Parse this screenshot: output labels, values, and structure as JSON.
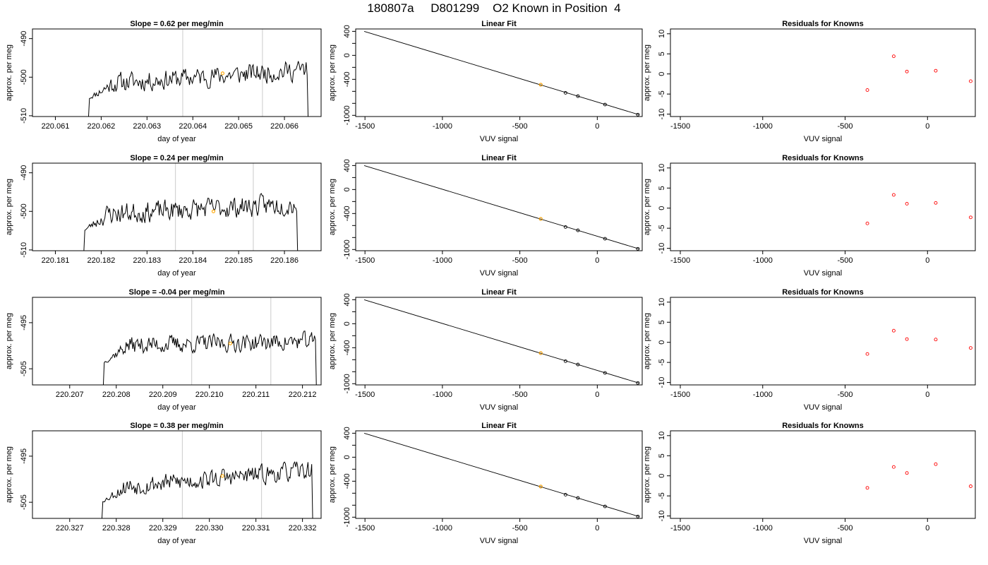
{
  "page_title": "180807a     D801299    O2 Known in Position  4",
  "colors": {
    "trace": "#000000",
    "highlight": "#ffa500",
    "residual": "#ff0000",
    "vline": "#d3d3d3",
    "axis": "#000000"
  },
  "chart_data": [
    {
      "type": "line",
      "row": 0,
      "col": 0,
      "title": "Slope =  0.62  per meg/min",
      "xlabel": "day of year",
      "ylabel": "approx. per meg",
      "xlim": [
        220.0605,
        220.0668
      ],
      "ylim": [
        -510.2,
        -487.5
      ],
      "xticks": [
        {
          "v": 220.061,
          "label": "220.061"
        },
        {
          "v": 220.062,
          "label": "220.062"
        },
        {
          "v": 220.063,
          "label": "220.063"
        },
        {
          "v": 220.064,
          "label": "220.064"
        },
        {
          "v": 220.065,
          "label": "220.065"
        },
        {
          "v": 220.066,
          "label": "220.066"
        }
      ],
      "yticks": [
        {
          "v": -510,
          "label": "-510"
        },
        {
          "v": -500,
          "label": "-500"
        },
        {
          "v": -490,
          "label": "-490"
        }
      ],
      "x_start": 220.06168,
      "x_end": 220.06658,
      "y_start": -510.5,
      "y_end": -510.5,
      "y_base": -502,
      "y_trend": 4,
      "amplitude": 2.3,
      "n_points": 230,
      "seed": 11,
      "vlines": [
        220.06378,
        220.06552
      ],
      "highlight": {
        "x": 220.06465,
        "y": -499
      }
    },
    {
      "type": "line",
      "row": 0,
      "col": 1,
      "title": "Linear Fit",
      "xlabel": "VUV signal",
      "ylabel": "approx. per meg",
      "xlim": [
        -1560,
        290
      ],
      "ylim": [
        -1020,
        440
      ],
      "xticks": [
        {
          "v": -1500,
          "label": "-1500"
        },
        {
          "v": -1000,
          "label": "-1000"
        },
        {
          "v": -500,
          "label": "-500"
        },
        {
          "v": 0,
          "label": "0"
        }
      ],
      "yticks": [
        {
          "v": -1000,
          "label": "-1000"
        },
        {
          "v": -800,
          "label": ""
        },
        {
          "v": -600,
          "label": ""
        },
        {
          "v": -400,
          "label": "-400"
        },
        {
          "v": -200,
          "label": ""
        },
        {
          "v": 0,
          "label": "0"
        },
        {
          "v": 200,
          "label": ""
        },
        {
          "v": 400,
          "label": "400"
        }
      ],
      "fit_line": [
        [
          -1505,
          400
        ],
        [
          270,
          -990
        ]
      ],
      "points": [
        {
          "x": -365,
          "y": -490
        },
        {
          "x": -205,
          "y": -625
        },
        {
          "x": -125,
          "y": -680
        },
        {
          "x": 50,
          "y": -820
        },
        {
          "x": 262,
          "y": -988
        }
      ],
      "highlight": {
        "x": -365,
        "y": -490
      }
    },
    {
      "type": "scatter",
      "row": 0,
      "col": 2,
      "title": "Residuals for Knowns",
      "xlabel": "VUV signal",
      "ylabel": "approx. per meg",
      "xlim": [
        -1560,
        290
      ],
      "ylim": [
        -10.6,
        11.2
      ],
      "xticks": [
        {
          "v": -1500,
          "label": "-1500"
        },
        {
          "v": -1000,
          "label": "-1000"
        },
        {
          "v": -500,
          "label": "-500"
        },
        {
          "v": 0,
          "label": "0"
        }
      ],
      "yticks": [
        {
          "v": -10,
          "label": "-10"
        },
        {
          "v": -5,
          "label": "-5"
        },
        {
          "v": 0,
          "label": "0"
        },
        {
          "v": 5,
          "label": "5"
        },
        {
          "v": 10,
          "label": "10"
        }
      ],
      "points": [
        {
          "x": -365,
          "y": -4.0
        },
        {
          "x": -205,
          "y": 4.4
        },
        {
          "x": -125,
          "y": 0.6
        },
        {
          "x": 50,
          "y": 0.8
        },
        {
          "x": 262,
          "y": -1.8
        }
      ]
    },
    {
      "type": "line",
      "row": 1,
      "col": 0,
      "title": "Slope =  0.24  per meg/min",
      "xlabel": "day of year",
      "ylabel": "approx. per meg",
      "xlim": [
        220.1805,
        220.1868
      ],
      "ylim": [
        -510.2,
        -487.5
      ],
      "xticks": [
        {
          "v": 220.181,
          "label": "220.181"
        },
        {
          "v": 220.182,
          "label": "220.182"
        },
        {
          "v": 220.183,
          "label": "220.183"
        },
        {
          "v": 220.184,
          "label": "220.184"
        },
        {
          "v": 220.185,
          "label": "220.185"
        },
        {
          "v": 220.186,
          "label": "220.186"
        }
      ],
      "yticks": [
        {
          "v": -510,
          "label": "-510"
        },
        {
          "v": -500,
          "label": "-500"
        },
        {
          "v": -490,
          "label": "-490"
        }
      ],
      "x_start": 220.18158,
      "x_end": 220.18635,
      "y_start": -510.5,
      "y_end": -510.5,
      "y_base": -501,
      "y_trend": 3,
      "amplitude": 2.4,
      "n_points": 230,
      "seed": 23,
      "vlines": [
        220.18362,
        220.18532
      ],
      "highlight": {
        "x": 220.18445,
        "y": -500
      }
    },
    {
      "type": "line",
      "row": 1,
      "col": 1,
      "title": "Linear Fit",
      "xlabel": "VUV signal",
      "ylabel": "approx. per meg",
      "xlim": [
        -1560,
        290
      ],
      "ylim": [
        -1020,
        440
      ],
      "xticks": [
        {
          "v": -1500,
          "label": "-1500"
        },
        {
          "v": -1000,
          "label": "-1000"
        },
        {
          "v": -500,
          "label": "-500"
        },
        {
          "v": 0,
          "label": "0"
        }
      ],
      "yticks": [
        {
          "v": -1000,
          "label": "-1000"
        },
        {
          "v": -800,
          "label": ""
        },
        {
          "v": -600,
          "label": ""
        },
        {
          "v": -400,
          "label": "-400"
        },
        {
          "v": -200,
          "label": ""
        },
        {
          "v": 0,
          "label": "0"
        },
        {
          "v": 200,
          "label": ""
        },
        {
          "v": 400,
          "label": "400"
        }
      ],
      "fit_line": [
        [
          -1505,
          400
        ],
        [
          270,
          -990
        ]
      ],
      "points": [
        {
          "x": -365,
          "y": -490
        },
        {
          "x": -205,
          "y": -625
        },
        {
          "x": -125,
          "y": -680
        },
        {
          "x": 50,
          "y": -820
        },
        {
          "x": 262,
          "y": -988
        }
      ],
      "highlight": {
        "x": -365,
        "y": -490
      }
    },
    {
      "type": "scatter",
      "row": 1,
      "col": 2,
      "title": "Residuals for Knowns",
      "xlabel": "VUV signal",
      "ylabel": "approx. per meg",
      "xlim": [
        -1560,
        290
      ],
      "ylim": [
        -10.6,
        11.2
      ],
      "xticks": [
        {
          "v": -1500,
          "label": "-1500"
        },
        {
          "v": -1000,
          "label": "-1000"
        },
        {
          "v": -500,
          "label": "-500"
        },
        {
          "v": 0,
          "label": "0"
        }
      ],
      "yticks": [
        {
          "v": -10,
          "label": "-10"
        },
        {
          "v": -5,
          "label": "-5"
        },
        {
          "v": 0,
          "label": "0"
        },
        {
          "v": 5,
          "label": "5"
        },
        {
          "v": 10,
          "label": "10"
        }
      ],
      "points": [
        {
          "x": -365,
          "y": -3.8
        },
        {
          "x": -205,
          "y": 3.3
        },
        {
          "x": -125,
          "y": 1.1
        },
        {
          "x": 50,
          "y": 1.3
        },
        {
          "x": 262,
          "y": -2.3
        }
      ]
    },
    {
      "type": "line",
      "row": 2,
      "col": 0,
      "title": "Slope =  -0.04  per meg/min",
      "xlabel": "day of year",
      "ylabel": "approx. per meg",
      "xlim": [
        220.2062,
        220.2124
      ],
      "ylim": [
        -508.5,
        -489.5
      ],
      "xticks": [
        {
          "v": 220.207,
          "label": "220.207"
        },
        {
          "v": 220.208,
          "label": "220.208"
        },
        {
          "v": 220.209,
          "label": "220.209"
        },
        {
          "v": 220.21,
          "label": "220.210"
        },
        {
          "v": 220.211,
          "label": "220.211"
        },
        {
          "v": 220.212,
          "label": "220.212"
        }
      ],
      "yticks": [
        {
          "v": -505,
          "label": "-505"
        },
        {
          "v": -495,
          "label": "-495"
        }
      ],
      "x_start": 220.20768,
      "x_end": 220.21236,
      "y_start": -509,
      "y_end": -509,
      "y_base": -500,
      "y_trend": 1,
      "amplitude": 1.7,
      "n_points": 230,
      "seed": 37,
      "vlines": [
        220.20962,
        220.21132
      ],
      "highlight": {
        "x": 220.21045,
        "y": -499.5
      }
    },
    {
      "type": "line",
      "row": 2,
      "col": 1,
      "title": "Linear Fit",
      "xlabel": "VUV signal",
      "ylabel": "approx. per meg",
      "xlim": [
        -1560,
        290
      ],
      "ylim": [
        -1020,
        440
      ],
      "xticks": [
        {
          "v": -1500,
          "label": "-1500"
        },
        {
          "v": -1000,
          "label": "-1000"
        },
        {
          "v": -500,
          "label": "-500"
        },
        {
          "v": 0,
          "label": "0"
        }
      ],
      "yticks": [
        {
          "v": -1000,
          "label": "-1000"
        },
        {
          "v": -800,
          "label": ""
        },
        {
          "v": -600,
          "label": ""
        },
        {
          "v": -400,
          "label": "-400"
        },
        {
          "v": -200,
          "label": ""
        },
        {
          "v": 0,
          "label": "0"
        },
        {
          "v": 200,
          "label": ""
        },
        {
          "v": 400,
          "label": "400"
        }
      ],
      "fit_line": [
        [
          -1505,
          400
        ],
        [
          270,
          -990
        ]
      ],
      "points": [
        {
          "x": -365,
          "y": -490
        },
        {
          "x": -205,
          "y": -625
        },
        {
          "x": -125,
          "y": -680
        },
        {
          "x": 50,
          "y": -820
        },
        {
          "x": 262,
          "y": -988
        }
      ],
      "highlight": {
        "x": -365,
        "y": -490
      }
    },
    {
      "type": "scatter",
      "row": 2,
      "col": 2,
      "title": "Residuals for Knowns",
      "xlabel": "VUV signal",
      "ylabel": "approx. per meg",
      "xlim": [
        -1560,
        290
      ],
      "ylim": [
        -10.6,
        11.2
      ],
      "xticks": [
        {
          "v": -1500,
          "label": "-1500"
        },
        {
          "v": -1000,
          "label": "-1000"
        },
        {
          "v": -500,
          "label": "-500"
        },
        {
          "v": 0,
          "label": "0"
        }
      ],
      "yticks": [
        {
          "v": -10,
          "label": "-10"
        },
        {
          "v": -5,
          "label": "-5"
        },
        {
          "v": 0,
          "label": "0"
        },
        {
          "v": 5,
          "label": "5"
        },
        {
          "v": 10,
          "label": "10"
        }
      ],
      "points": [
        {
          "x": -365,
          "y": -2.9
        },
        {
          "x": -205,
          "y": 2.9
        },
        {
          "x": -125,
          "y": 0.8
        },
        {
          "x": 50,
          "y": 0.7
        },
        {
          "x": 262,
          "y": -1.4
        }
      ]
    },
    {
      "type": "line",
      "row": 3,
      "col": 0,
      "title": "Slope =  0.38  per meg/min",
      "xlabel": "day of year",
      "ylabel": "approx. per meg",
      "xlim": [
        220.3262,
        220.3324
      ],
      "ylim": [
        -508.5,
        -489.5
      ],
      "xticks": [
        {
          "v": 220.327,
          "label": "220.327"
        },
        {
          "v": 220.328,
          "label": "220.328"
        },
        {
          "v": 220.329,
          "label": "220.329"
        },
        {
          "v": 220.33,
          "label": "220.330"
        },
        {
          "v": 220.331,
          "label": "220.331"
        },
        {
          "v": 220.332,
          "label": "220.332"
        }
      ],
      "yticks": [
        {
          "v": -505,
          "label": "-505"
        },
        {
          "v": -495,
          "label": "-495"
        }
      ],
      "x_start": 220.32765,
      "x_end": 220.33228,
      "y_start": -509,
      "y_end": -509,
      "y_base": -502,
      "y_trend": 4,
      "amplitude": 1.8,
      "n_points": 230,
      "seed": 53,
      "vlines": [
        220.32942,
        220.33112
      ],
      "highlight": {
        "x": 220.33028,
        "y": -499.3
      }
    },
    {
      "type": "line",
      "row": 3,
      "col": 1,
      "title": "Linear Fit",
      "xlabel": "VUV signal",
      "ylabel": "approx. per meg",
      "xlim": [
        -1560,
        290
      ],
      "ylim": [
        -1020,
        440
      ],
      "xticks": [
        {
          "v": -1500,
          "label": "-1500"
        },
        {
          "v": -1000,
          "label": "-1000"
        },
        {
          "v": -500,
          "label": "-500"
        },
        {
          "v": 0,
          "label": "0"
        }
      ],
      "yticks": [
        {
          "v": -1000,
          "label": "-1000"
        },
        {
          "v": -800,
          "label": ""
        },
        {
          "v": -600,
          "label": ""
        },
        {
          "v": -400,
          "label": "-400"
        },
        {
          "v": -200,
          "label": ""
        },
        {
          "v": 0,
          "label": "0"
        },
        {
          "v": 200,
          "label": ""
        },
        {
          "v": 400,
          "label": "400"
        }
      ],
      "fit_line": [
        [
          -1505,
          400
        ],
        [
          270,
          -990
        ]
      ],
      "points": [
        {
          "x": -365,
          "y": -490
        },
        {
          "x": -205,
          "y": -625
        },
        {
          "x": -125,
          "y": -680
        },
        {
          "x": 50,
          "y": -820
        },
        {
          "x": 262,
          "y": -988
        }
      ],
      "highlight": {
        "x": -365,
        "y": -490
      }
    },
    {
      "type": "scatter",
      "row": 3,
      "col": 2,
      "title": "Residuals for Knowns",
      "xlabel": "VUV signal",
      "ylabel": "approx. per meg",
      "xlim": [
        -1560,
        290
      ],
      "ylim": [
        -10.6,
        11.2
      ],
      "xticks": [
        {
          "v": -1500,
          "label": "-1500"
        },
        {
          "v": -1000,
          "label": "-1000"
        },
        {
          "v": -500,
          "label": "-500"
        },
        {
          "v": 0,
          "label": "0"
        }
      ],
      "yticks": [
        {
          "v": -10,
          "label": "-10"
        },
        {
          "v": -5,
          "label": "-5"
        },
        {
          "v": 0,
          "label": "0"
        },
        {
          "v": 5,
          "label": "5"
        },
        {
          "v": 10,
          "label": "10"
        }
      ],
      "points": [
        {
          "x": -365,
          "y": -3.0
        },
        {
          "x": -205,
          "y": 2.2
        },
        {
          "x": -125,
          "y": 0.7
        },
        {
          "x": 50,
          "y": 2.9
        },
        {
          "x": 262,
          "y": -2.6
        }
      ]
    }
  ]
}
